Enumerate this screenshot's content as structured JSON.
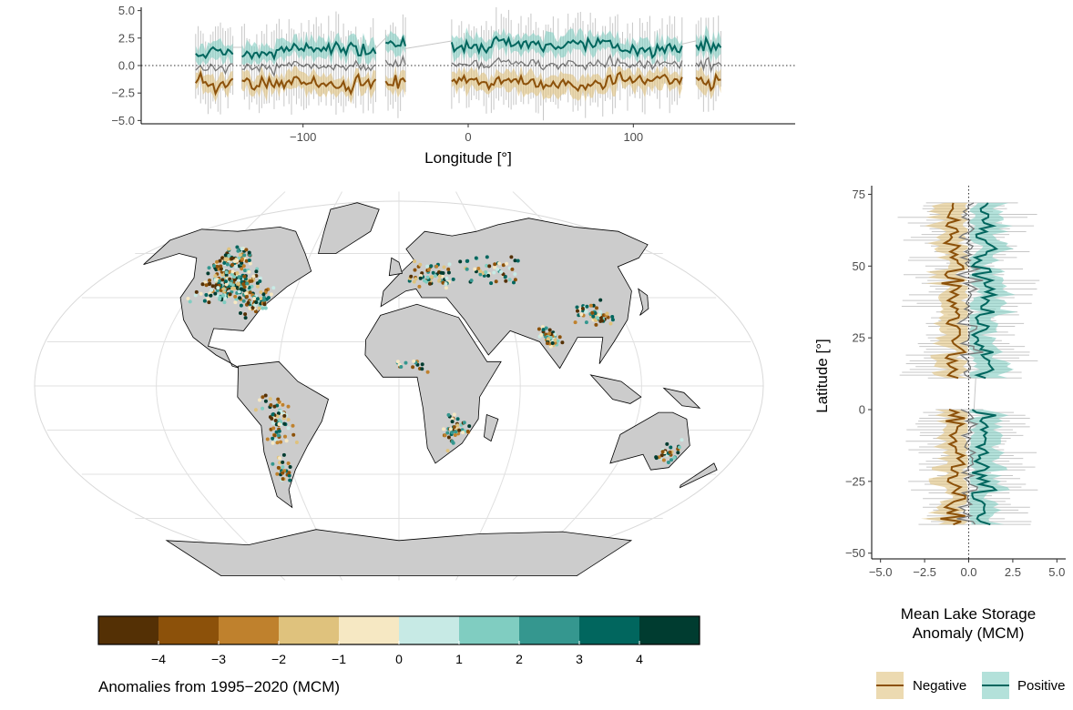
{
  "colors": {
    "negative": "#8c510a",
    "positive": "#01665e",
    "negative_band": "#dfc27d",
    "positive_band": "#80cdc1",
    "range": "#c7c7c7",
    "mean": "#777777",
    "land": "#cccccc"
  },
  "chart_data": [
    {
      "type": "line",
      "panel": "longitude-profile",
      "xlabel": "Longitude [°]",
      "ylabel": "",
      "xlim": [
        -198,
        198
      ],
      "ylim": [
        -5.3,
        5.3
      ],
      "x_ticks": [
        -100,
        0,
        100
      ],
      "x_tick_labels": [
        "−100",
        "0",
        "100"
      ],
      "y_ticks": [
        -5,
        -2.5,
        0,
        2.5,
        5
      ],
      "y_tick_labels": [
        "−5.0",
        "−2.5",
        "0.0",
        "2.5",
        "5.0"
      ],
      "reference_line": 0,
      "segments": [
        [
          -165,
          -142
        ],
        [
          -137,
          -56
        ],
        [
          -50,
          -37
        ],
        [
          -10,
          130
        ],
        [
          138,
          153
        ]
      ],
      "series": [
        {
          "name": "Negative",
          "profile": [
            [
              -165,
              -1.2
            ],
            [
              -150,
              -1.8
            ],
            [
              -140,
              -1.5
            ],
            [
              -120,
              -1.7
            ],
            [
              -100,
              -1.6
            ],
            [
              -80,
              -1.9
            ],
            [
              -60,
              -1.5
            ],
            [
              -45,
              -1.4
            ],
            [
              -10,
              -1.2
            ],
            [
              10,
              -1.6
            ],
            [
              30,
              -1.6
            ],
            [
              50,
              -1.5
            ],
            [
              70,
              -2.0
            ],
            [
              90,
              -1.4
            ],
            [
              110,
              -1.3
            ],
            [
              130,
              -1.2
            ],
            [
              150,
              -1.4
            ]
          ]
        },
        {
          "name": "Positive",
          "profile": [
            [
              -165,
              1.0
            ],
            [
              -150,
              1.5
            ],
            [
              -140,
              0.7
            ],
            [
              -120,
              1.1
            ],
            [
              -100,
              1.4
            ],
            [
              -80,
              1.6
            ],
            [
              -60,
              1.3
            ],
            [
              -45,
              2.0
            ],
            [
              -10,
              1.6
            ],
            [
              10,
              1.8
            ],
            [
              30,
              2.1
            ],
            [
              50,
              1.7
            ],
            [
              70,
              2.2
            ],
            [
              90,
              1.6
            ],
            [
              110,
              1.2
            ],
            [
              130,
              1.5
            ],
            [
              150,
              1.8
            ]
          ]
        }
      ]
    },
    {
      "type": "line",
      "panel": "latitude-profile",
      "xlabel": "Mean Lake Storage Anomaly (MCM)",
      "ylabel": "Latitude [°]",
      "xlim": [
        -5.5,
        5.5
      ],
      "ylim": [
        -52,
        78
      ],
      "x_ticks": [
        -5,
        -2.5,
        0,
        2.5,
        5
      ],
      "x_tick_labels": [
        "−5.0",
        "−2.5",
        "0.0",
        "2.5",
        "5.0"
      ],
      "y_ticks": [
        75,
        50,
        25,
        0,
        -25,
        -50
      ],
      "y_tick_labels": [
        "75",
        "50",
        "25",
        "0",
        "−25",
        "−50"
      ],
      "reference_line": 0,
      "segments": [
        [
          11,
          72
        ],
        [
          -40,
          0
        ]
      ],
      "series": [
        {
          "name": "Negative",
          "profile": [
            [
              72,
              -0.8
            ],
            [
              65,
              -1.2
            ],
            [
              55,
              -1.5
            ],
            [
              45,
              -1.6
            ],
            [
              40,
              -1.4
            ],
            [
              35,
              -1.8
            ],
            [
              30,
              -1.5
            ],
            [
              25,
              -2.0
            ],
            [
              20,
              -2.2
            ],
            [
              15,
              -2.5
            ],
            [
              11,
              -2.8
            ],
            [
              0,
              -0.8
            ],
            [
              -5,
              -1.6
            ],
            [
              -10,
              -1.8
            ],
            [
              -15,
              -2.0
            ],
            [
              -20,
              -2.2
            ],
            [
              -25,
              -1.8
            ],
            [
              -30,
              -2.1
            ],
            [
              -35,
              -2.3
            ],
            [
              -40,
              -2.6
            ]
          ]
        },
        {
          "name": "Positive",
          "profile": [
            [
              72,
              0.8
            ],
            [
              65,
              1.4
            ],
            [
              55,
              1.6
            ],
            [
              45,
              1.8
            ],
            [
              40,
              1.9
            ],
            [
              35,
              2.0
            ],
            [
              30,
              2.1
            ],
            [
              25,
              1.8
            ],
            [
              20,
              1.7
            ],
            [
              15,
              1.5
            ],
            [
              11,
              0.9
            ],
            [
              0,
              1.4
            ],
            [
              -5,
              1.9
            ],
            [
              -10,
              2.1
            ],
            [
              -15,
              1.8
            ],
            [
              -20,
              2.0
            ],
            [
              -25,
              2.2
            ],
            [
              -30,
              2.0
            ],
            [
              -35,
              1.8
            ],
            [
              -40,
              1.2
            ]
          ]
        }
      ],
      "legend": {
        "position": "bottom",
        "entries": [
          "Negative",
          "Positive"
        ]
      }
    },
    {
      "type": "scatter",
      "panel": "world-map",
      "projection": "Robinson",
      "title": "",
      "colorbar": {
        "label": "Anomalies from 1995−2020 (MCM)",
        "range": [
          -5,
          5
        ],
        "ticks": [
          -4,
          -3,
          -2,
          -1,
          0,
          1,
          2,
          3,
          4
        ],
        "tick_labels": [
          "−4",
          "−3",
          "−2",
          "−1",
          "0",
          "1",
          "2",
          "3",
          "4"
        ],
        "palette": [
          "#543005",
          "#8c510a",
          "#bf812d",
          "#dfc27d",
          "#f6e8c3",
          "#c7eae5",
          "#80cdc1",
          "#35978f",
          "#01665e",
          "#003c30"
        ]
      },
      "lake_regions": [
        {
          "lon": -100,
          "lat": 45,
          "lon_spread": 22,
          "lat_spread": 10,
          "count": 230
        },
        {
          "lon": -110,
          "lat": 57,
          "lon_spread": 18,
          "lat_spread": 8,
          "count": 90
        },
        {
          "lon": -80,
          "lat": 38,
          "lon_spread": 10,
          "lat_spread": 8,
          "count": 60
        },
        {
          "lon": -60,
          "lat": -15,
          "lon_spread": 12,
          "lat_spread": 15,
          "count": 70
        },
        {
          "lon": -65,
          "lat": -38,
          "lon_spread": 7,
          "lat_spread": 8,
          "count": 25
        },
        {
          "lon": 20,
          "lat": 50,
          "lon_spread": 18,
          "lat_spread": 8,
          "count": 60
        },
        {
          "lon": 60,
          "lat": 52,
          "lon_spread": 25,
          "lat_spread": 8,
          "count": 50
        },
        {
          "lon": 78,
          "lat": 22,
          "lon_spread": 7,
          "lat_spread": 6,
          "count": 60
        },
        {
          "lon": 105,
          "lat": 33,
          "lon_spread": 14,
          "lat_spread": 8,
          "count": 50
        },
        {
          "lon": 28,
          "lat": -20,
          "lon_spread": 9,
          "lat_spread": 10,
          "count": 45
        },
        {
          "lon": 145,
          "lat": -30,
          "lon_spread": 9,
          "lat_spread": 6,
          "count": 30
        },
        {
          "lon": 5,
          "lat": 10,
          "lon_spread": 12,
          "lat_spread": 6,
          "count": 15
        }
      ]
    }
  ],
  "legend": {
    "negative_label": "Negative",
    "positive_label": "Positive"
  },
  "labels": {
    "top_xlabel": "Longitude [°]",
    "right_ylabel": "Latitude [°]",
    "right_xlabel_line1": "Mean Lake Storage",
    "right_xlabel_line2": "Anomaly (MCM)",
    "colorbar_title": "Anomalies from 1995−2020 (MCM)"
  }
}
